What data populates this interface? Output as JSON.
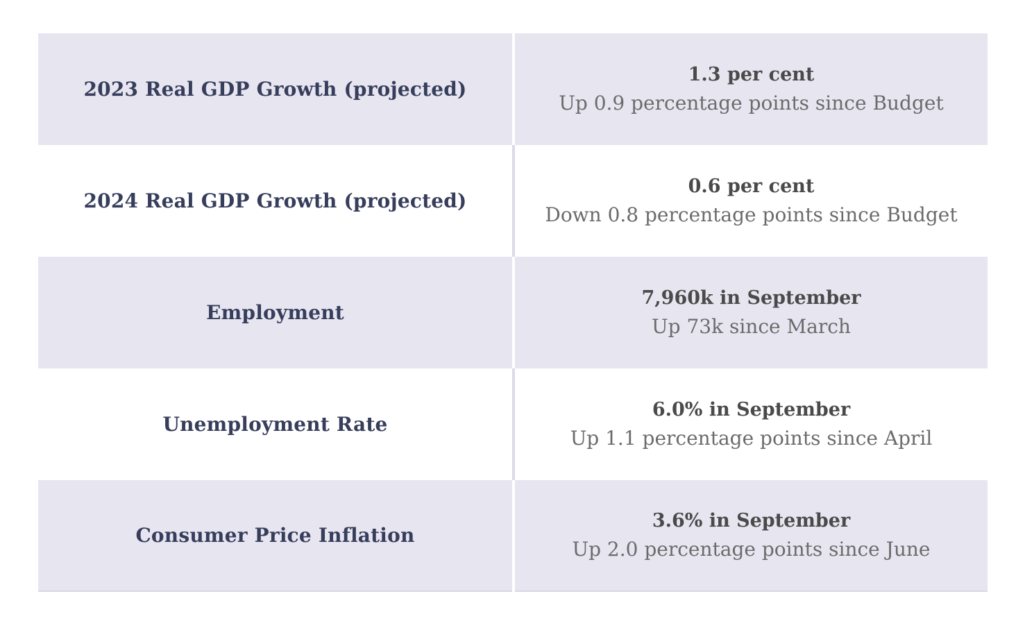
{
  "table": {
    "rows": [
      {
        "label": "2023 Real GDP Growth (projected)",
        "value": "1.3 per cent",
        "change": "Up 0.9 percentage points since Budget"
      },
      {
        "label": "2024 Real GDP Growth (projected)",
        "value": "0.6 per cent",
        "change": "Down 0.8 percentage points since Budget"
      },
      {
        "label": "Employment",
        "value": "7,960k in September",
        "change": "Up 73k since March"
      },
      {
        "label": "Unemployment Rate",
        "value": "6.0% in September",
        "change": "Up 1.1 percentage points since April"
      },
      {
        "label": "Consumer Price Inflation",
        "value": "3.6% in September",
        "change": "Up 2.0 percentage points since June"
      }
    ],
    "colors": {
      "page_bg": "#ffffff",
      "band_bg": "#e7e5f0",
      "plain_bg": "#ffffff",
      "label_text": "#373e5c",
      "value_text": "#4a4a4a",
      "change_text": "#6b6b6b",
      "divider_on_band": "#ffffff",
      "divider_on_plain": "#dcd9e8",
      "bottom_edge": "#d9d6e6"
    }
  }
}
